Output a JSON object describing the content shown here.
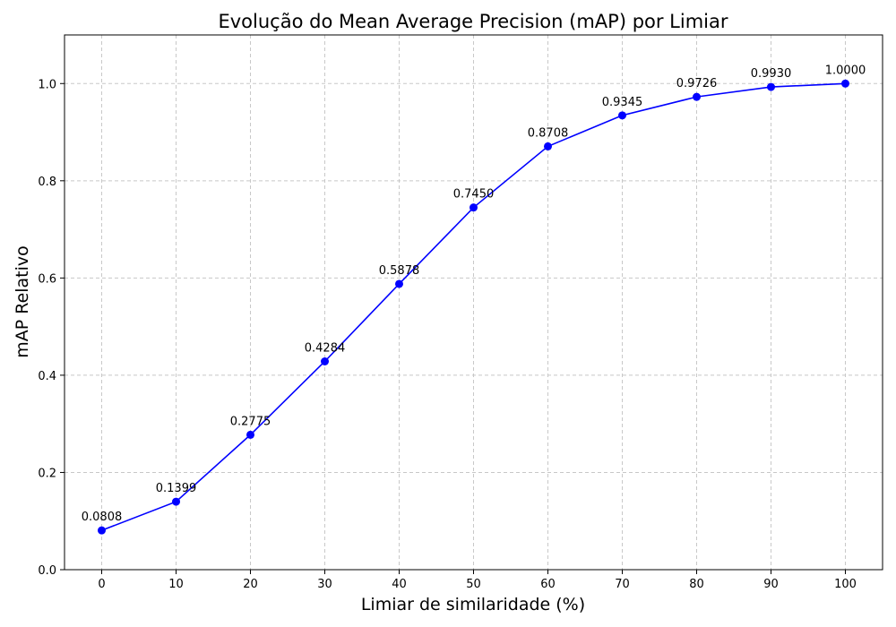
{
  "chart_data": {
    "type": "line",
    "title": "Evolução do Mean Average Precision (mAP) por Limiar",
    "xlabel": "Limiar de similaridade (%)",
    "ylabel": "mAP Relativo",
    "x": [
      0,
      10,
      20,
      30,
      40,
      50,
      60,
      70,
      80,
      90,
      100
    ],
    "series": [
      {
        "values": [
          0.0808,
          0.1399,
          0.2775,
          0.4284,
          0.5878,
          0.745,
          0.8708,
          0.9345,
          0.9726,
          0.993,
          1.0
        ],
        "labels": [
          "0.0808",
          "0.1399",
          "0.2775",
          "0.4284",
          "0.5878",
          "0.7450",
          "0.8708",
          "0.9345",
          "0.9726",
          "0.9930",
          "1.0000"
        ],
        "color": "#0000ff",
        "marker": "circle"
      }
    ],
    "xlim": [
      -5,
      105
    ],
    "ylim": [
      0,
      1.1
    ],
    "xticks": [
      "0",
      "10",
      "20",
      "30",
      "40",
      "50",
      "60",
      "70",
      "80",
      "90",
      "100"
    ],
    "yticks": [
      "0.0",
      "0.2",
      "0.4",
      "0.6",
      "0.8",
      "1.0"
    ],
    "grid": true,
    "grid_style": "dashed",
    "legend": false
  }
}
